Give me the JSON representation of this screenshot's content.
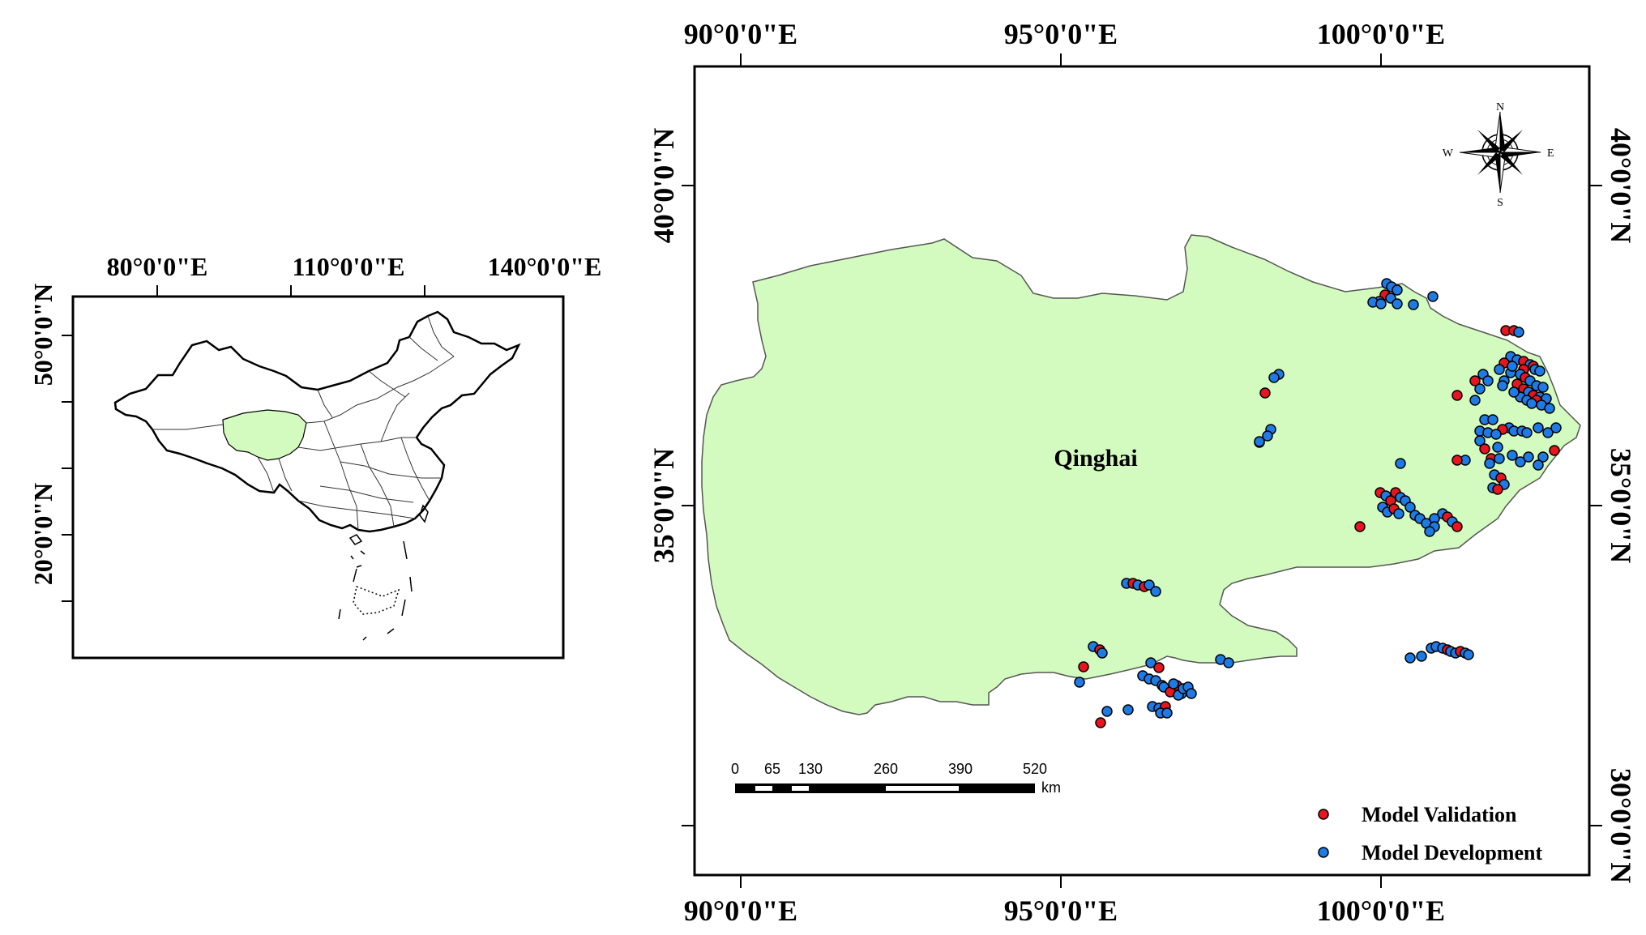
{
  "inset_map": {
    "top_labels": [
      "80°0'0\"E",
      "110°0'0\"E",
      "140°0'0\"E"
    ],
    "left_labels": [
      "50°0'0\"N",
      "20°0'0\"N"
    ],
    "highlight_color": "#d4fbbf"
  },
  "main_map": {
    "top_labels": [
      "90°0'0\"E",
      "95°0'0\"E",
      "100°0'0\"E"
    ],
    "bottom_labels": [
      "90°0'0\"E",
      "95°0'0\"E",
      "100°0'0\"E"
    ],
    "left_labels": [
      "40°0'0\"N",
      "35°0'0\"N"
    ],
    "right_labels": [
      "40°0'0\"N",
      "35°0'0\"N",
      "30°0'0\"N"
    ],
    "region_label": "Qinghai",
    "region_color": "#d4fbbf",
    "compass": {
      "n": "N",
      "s": "S",
      "e": "E",
      "w": "W"
    },
    "scale_bar": {
      "ticks": [
        "0",
        "65",
        "130",
        "260",
        "390",
        "520"
      ],
      "unit": "km"
    },
    "legend": [
      {
        "label": "Model Validation",
        "color": "#e8141e"
      },
      {
        "label": "Model Development",
        "color": "#1e7be6"
      }
    ]
  }
}
